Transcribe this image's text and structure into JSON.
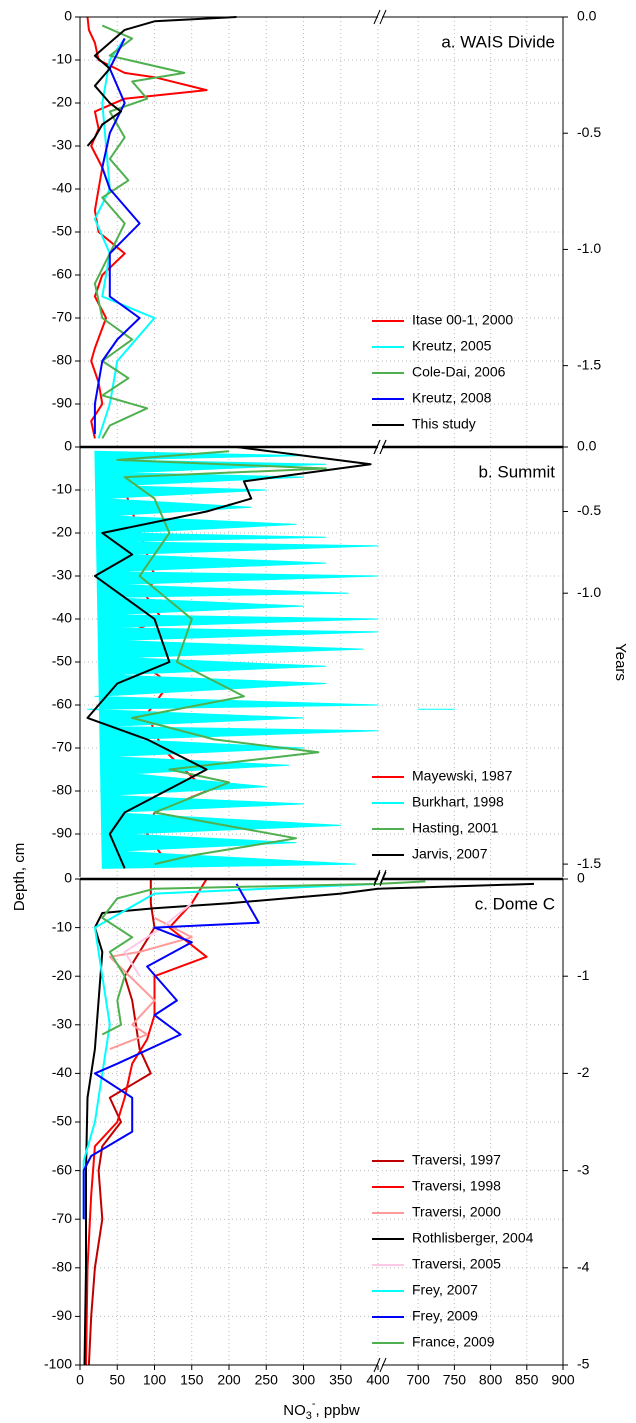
{
  "chart_data": [
    {
      "type": "line",
      "annotation": "a. WAIS Divide",
      "ylim": [
        0,
        -100
      ],
      "yticks": [
        0,
        -10,
        -20,
        -30,
        -40,
        -50,
        -60,
        -70,
        -80,
        -90
      ],
      "y2lim": [
        0,
        -1.85
      ],
      "y2ticks": [
        {
          "value": 0,
          "label": "0.0"
        },
        -0.5,
        {
          "value": -1,
          "label": "-1.0"
        },
        -1.5
      ],
      "grid": true,
      "legend": "lower right",
      "series": [
        {
          "name": "Itase 00-1, 2000",
          "color": "#ff0000",
          "x": [
            10,
            12,
            20,
            25,
            60,
            100,
            170,
            60,
            20,
            25,
            15,
            30,
            25,
            20,
            25,
            60,
            30,
            20,
            35,
            20,
            15,
            25,
            30,
            15,
            20
          ],
          "y": [
            0,
            -3,
            -6,
            -10,
            -13,
            -14,
            -17,
            -19,
            -22,
            -26,
            -30,
            -35,
            -40,
            -45,
            -50,
            -55,
            -60,
            -65,
            -70,
            -77,
            -80,
            -85,
            -90,
            -94,
            -98
          ]
        },
        {
          "name": "Kreutz, 2005",
          "color": "#00ffff",
          "x": [
            60,
            40,
            30,
            35,
            40,
            20,
            40,
            30,
            100,
            50,
            40,
            25
          ],
          "y": [
            -5,
            -10,
            -20,
            -30,
            -40,
            -47,
            -55,
            -65,
            -70,
            -80,
            -90,
            -98
          ]
        },
        {
          "name": "Cole-Dai, 2006",
          "color": "#4fb04f",
          "x": [
            30,
            70,
            40,
            140,
            70,
            90,
            40,
            60,
            40,
            65,
            30,
            60,
            40,
            20,
            30,
            70,
            30,
            65,
            30,
            90,
            40,
            30
          ],
          "y": [
            -2,
            -5,
            -9,
            -13,
            -15,
            -19,
            -22,
            -28,
            -33,
            -38,
            -42,
            -48,
            -55,
            -62,
            -70,
            -75,
            -80,
            -84,
            -88,
            -91,
            -95,
            -98
          ]
        },
        {
          "name": "Kreutz, 2008",
          "color": "#0000ff",
          "x": [
            60,
            40,
            60,
            40,
            30,
            40,
            80,
            40,
            40,
            80,
            50,
            30,
            20,
            20
          ],
          "y": [
            -5,
            -12,
            -20,
            -27,
            -35,
            -40,
            -48,
            -55,
            -65,
            -70,
            -75,
            -80,
            -90,
            -97
          ]
        },
        {
          "name": "This study",
          "color": "#000000",
          "x": [
            210,
            100,
            60,
            40,
            20,
            40,
            20,
            40,
            55,
            30,
            20,
            10
          ],
          "y": [
            0,
            -1,
            -3,
            -6,
            -9,
            -12,
            -16,
            -20,
            -22,
            -25,
            -28,
            -30
          ]
        }
      ]
    },
    {
      "type": "line",
      "annotation": "b. Summit",
      "ylabel": "Depth, cm",
      "y2label": "Years",
      "ylim": [
        0,
        -100
      ],
      "yticks": [
        0,
        -10,
        -20,
        -30,
        -40,
        -50,
        -60,
        -70,
        -80,
        -90
      ],
      "y2ticks": [
        {
          "value": 0,
          "label": "0.0"
        },
        -0.5,
        {
          "value": -1,
          "label": "-1.0"
        },
        -1.5
      ],
      "y2tick_depths": [
        0,
        -15,
        -34,
        -97
      ],
      "grid": true,
      "legend": "lower right",
      "series": [
        {
          "name": "Mayewski, 1987",
          "color": "#ff0000",
          "x": [
            30,
            40,
            60,
            70,
            80,
            90,
            100,
            90,
            110,
            40,
            80,
            120,
            90,
            110,
            140,
            170,
            100,
            90,
            110
          ],
          "y": [
            -1,
            -5,
            -10,
            -15,
            -20,
            -25,
            -30,
            -35,
            -40,
            -45,
            -50,
            -55,
            -62,
            -70,
            -75,
            -80,
            -85,
            -90,
            -95
          ]
        },
        {
          "name": "Burkhart, 1998",
          "color": "#00ffff",
          "fill": true,
          "x": [
            20,
            300,
            40,
            330,
            60,
            300,
            50,
            250,
            30,
            230,
            40,
            290,
            60,
            330,
            40,
            400,
            60,
            330,
            40,
            400,
            50,
            360,
            30,
            300,
            40,
            400,
            30,
            400,
            50,
            380,
            60,
            330,
            40,
            330,
            20,
            400,
            10,
            300,
            30,
            400,
            60,
            300,
            40,
            280,
            70,
            250,
            40,
            300,
            40,
            350,
            60,
            290,
            50,
            370,
            30,
            null,
            700,
            750
          ],
          "y": [
            -1,
            -2,
            -3,
            -4,
            -6,
            -7,
            -9,
            -10,
            -12,
            -14,
            -16,
            -18,
            -20,
            -21,
            -22,
            -23,
            -25,
            -27,
            -29,
            -30,
            -32,
            -34,
            -35,
            -37,
            -39,
            -40,
            -42,
            -43,
            -45,
            -47,
            -49,
            -51,
            -53,
            -55,
            -58,
            -60,
            -61,
            -63,
            -65,
            -66,
            -68,
            -70,
            -72,
            -74,
            -76,
            -79,
            -81,
            -83,
            -85,
            -88,
            -90,
            -92,
            -94,
            -97,
            -98,
            null,
            -61,
            -61
          ]
        },
        {
          "name": "Hasting, 2001",
          "color": "#4fb04f",
          "x": [
            200,
            50,
            330,
            60,
            100,
            120,
            80,
            150,
            130,
            220,
            70,
            180,
            320,
            120,
            200,
            100,
            290,
            150,
            100
          ],
          "y": [
            -1,
            -3,
            -5,
            -7,
            -12,
            -20,
            -30,
            -40,
            -50,
            -58,
            -63,
            -68,
            -71,
            -75,
            -78,
            -85,
            -91,
            -95,
            -97
          ]
        },
        {
          "name": "Jarvis, 2007",
          "color": "#000000",
          "x": [
            210,
            390,
            220,
            230,
            170,
            30,
            70,
            20,
            100,
            120,
            50,
            10,
            90,
            170,
            60,
            40,
            60
          ],
          "y": [
            0,
            -4,
            -8,
            -12,
            -15,
            -20,
            -25,
            -30,
            -40,
            -50,
            -55,
            -63,
            -68,
            -75,
            -85,
            -90,
            -98
          ]
        }
      ]
    },
    {
      "type": "line",
      "annotation": "c. Dome C",
      "ylim": [
        0,
        -100
      ],
      "yticks": [
        0,
        -10,
        -20,
        -30,
        -40,
        -50,
        -60,
        -70,
        -80,
        -90,
        -100
      ],
      "y2lim": [
        0,
        -5
      ],
      "y2ticks": [
        0,
        -1,
        -2,
        -3,
        -4,
        -5
      ],
      "xlim": [
        [
          0,
          400
        ],
        [
          650,
          900
        ]
      ],
      "xticks": [
        0,
        50,
        100,
        150,
        200,
        250,
        300,
        350,
        400,
        700,
        750,
        800,
        850,
        900
      ],
      "xlabel": {
        "base": "NO",
        "sub": "3",
        "sup": "-",
        "rest": ", ppbw"
      },
      "grid": true,
      "legend": "lower right",
      "series": [
        {
          "name": "Traversi, 1997",
          "color": "#c00000",
          "x": [
            95,
            95,
            100,
            80,
            60,
            70,
            75,
            80,
            95,
            40,
            55,
            30,
            25,
            30,
            20,
            15,
            12
          ],
          "y": [
            0,
            -5,
            -10,
            -15,
            -20,
            -25,
            -30,
            -35,
            -40,
            -45,
            -50,
            -55,
            -60,
            -70,
            -80,
            -90,
            -100
          ]
        },
        {
          "name": "Traversi, 1998",
          "color": "#ff0000",
          "x": [
            170,
            150,
            120,
            170,
            100,
            100,
            90,
            70,
            60,
            50,
            20,
            15,
            10,
            8
          ],
          "y": [
            0,
            -5,
            -10,
            -16,
            -20,
            -28,
            -33,
            -38,
            -45,
            -50,
            -55,
            -65,
            -80,
            -100
          ]
        },
        {
          "name": "Traversi, 2000",
          "color": "#ff9a9a",
          "x": [
            100,
            150,
            80,
            40,
            100,
            70,
            90,
            40
          ],
          "y": [
            -8,
            -12,
            -15,
            -16,
            -25,
            -30,
            -32,
            -35
          ]
        },
        {
          "name": "Rothlisberger, 2004",
          "color": "#000000",
          "x": [
            860,
            400,
            350,
            200,
            100,
            30,
            20,
            30,
            25,
            20,
            10,
            8,
            8,
            6
          ],
          "y": [
            -1,
            -2,
            -3,
            -5,
            -6,
            -7,
            -10,
            -15,
            -25,
            -35,
            -45,
            -60,
            -80,
            -100
          ]
        },
        {
          "name": "Traversi, 2005",
          "color": "#ffc8e6",
          "x": [
            150,
            110,
            60,
            80
          ],
          "y": [
            -5,
            -10,
            -15,
            -20
          ]
        },
        {
          "name": "Frey, 2007",
          "color": "#00ffff",
          "x": [
            400,
            100,
            20,
            30,
            40,
            30,
            20,
            5,
            5
          ],
          "y": [
            -1,
            -3,
            -10,
            -20,
            -30,
            -40,
            -50,
            -58,
            -70
          ]
        },
        {
          "name": "Frey, 2009",
          "color": "#0000ff",
          "x": [
            210,
            240,
            100,
            150,
            90,
            130,
            100,
            135,
            50,
            20,
            70,
            70,
            15,
            5,
            5
          ],
          "y": [
            -1,
            -9,
            -10,
            -13,
            -18,
            -25,
            -28,
            -32,
            -38,
            -40,
            -45,
            -52,
            -57,
            -60,
            -70
          ]
        },
        {
          "name": "France, 2009",
          "color": "#4fb04f",
          "x": [
            710,
            400,
            100,
            50,
            30,
            70,
            40,
            60,
            50,
            55,
            30
          ],
          "y": [
            -0.5,
            -1,
            -2,
            -4,
            -8,
            -12,
            -15,
            -20,
            -25,
            -30,
            -32
          ]
        }
      ]
    }
  ]
}
